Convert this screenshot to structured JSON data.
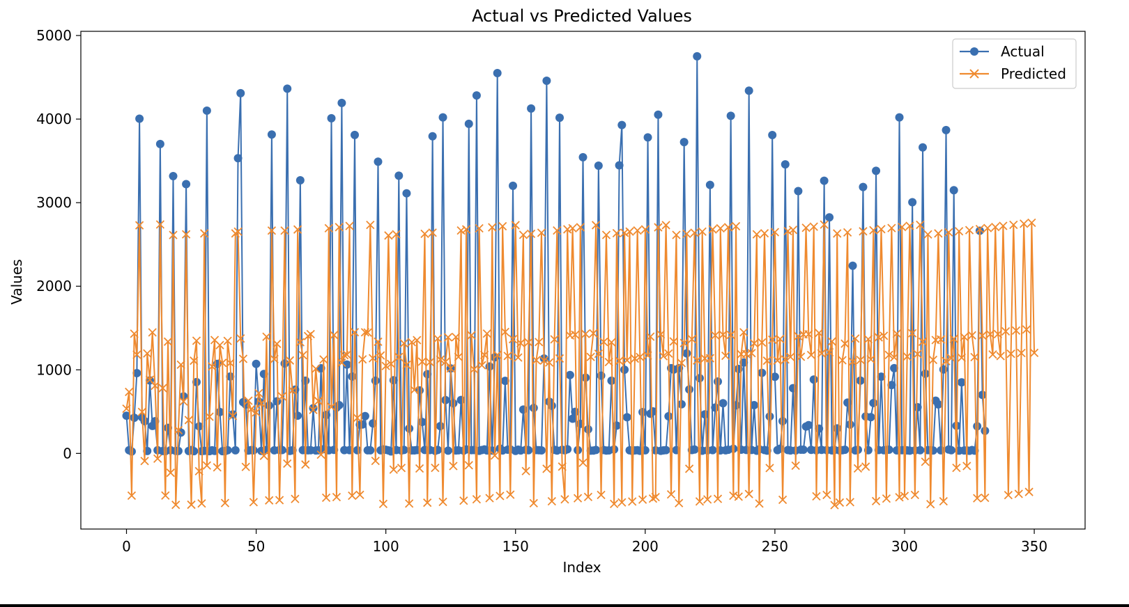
{
  "chart_data": {
    "type": "line",
    "title": "Actual vs Predicted Values",
    "xlabel": "Index",
    "ylabel": "Values",
    "xlim": [
      -17.6,
      369.6
    ],
    "ylim": [
      -905,
      5050
    ],
    "x_ticks": [
      0,
      50,
      100,
      150,
      200,
      250,
      300,
      350
    ],
    "y_ticks": [
      0,
      1000,
      2000,
      3000,
      4000,
      5000
    ],
    "grid": false,
    "legend_position": "top-right",
    "series": [
      {
        "name": "Actual",
        "color": "#3a6fb0",
        "marker": "circle",
        "values": [
          451,
          38,
          23,
          427,
          961,
          4005,
          433,
          386,
          29,
          873,
          329,
          385,
          38,
          3702,
          29,
          27,
          306,
          38,
          3318,
          30,
          29,
          250,
          683,
          3222,
          29,
          40,
          27,
          853,
          324,
          27,
          31,
          4101,
          27,
          37,
          30,
          1071,
          495,
          27,
          27,
          38,
          920,
          467,
          37,
          3532,
          4310,
          613,
          585,
          34,
          39,
          37,
          1071,
          620,
          30,
          950,
          42,
          573,
          3815,
          37,
          623,
          40,
          40,
          1075,
          4364,
          30,
          37,
          763,
          451,
          3268,
          39,
          870,
          37,
          38,
          541,
          35,
          37,
          1019,
          51,
          460,
          37,
          4010,
          42,
          548,
          577,
          4193,
          39,
          1063,
          39,
          920,
          3810,
          38,
          343,
          346,
          446,
          37,
          37,
          359,
          870,
          3490,
          37,
          48,
          43,
          36,
          24,
          875,
          40,
          3323,
          35,
          41,
          3112,
          297,
          36,
          36,
          40,
          753,
          376,
          41,
          948,
          40,
          3794,
          31,
          41,
          327,
          4020,
          638,
          33,
          1017,
          599,
          35,
          37,
          639,
          33,
          48,
          3943,
          39,
          40,
          4283,
          31,
          40,
          48,
          35,
          1040,
          34,
          1150,
          4550,
          58,
          35,
          868,
          44,
          48,
          3202,
          30,
          45,
          35,
          524,
          43,
          38,
          4127,
          544,
          40,
          38,
          36,
          1136,
          4459,
          619,
          570,
          42,
          34,
          4016,
          43,
          37,
          50,
          938,
          415,
          497,
          39,
          354,
          3544,
          907,
          288,
          33,
          34,
          41,
          3443,
          930,
          40,
          34,
          36,
          870,
          48,
          333,
          3447,
          3929,
          1001,
          433,
          37,
          30,
          36,
          38,
          31,
          494,
          37,
          3781,
          474,
          503,
          37,
          4053,
          31,
          36,
          39,
          444,
          1020,
          1003,
          39,
          1020,
          588,
          3725,
          1197,
          765,
          40,
          47,
          4751,
          900,
          32,
          467,
          36,
          3212,
          39,
          548,
          860,
          36,
          600,
          37,
          43,
          4039,
          56,
          575,
          1011,
          44,
          1088,
          41,
          4340,
          41,
          577,
          32,
          49,
          964,
          40,
          33,
          442,
          3809,
          917,
          39,
          56,
          386,
          3458,
          40,
          35,
          781,
          35,
          3139,
          44,
          44,
          321,
          338,
          42,
          884,
          37,
          296,
          42,
          3262,
          39,
          2824,
          36,
          40,
          300,
          35,
          38,
          43,
          608,
          345,
          2245,
          36,
          43,
          871,
          3188,
          442,
          38,
          434,
          603,
          3381,
          40,
          918,
          38,
          40,
          44,
          818,
          1020,
          36,
          4020,
          38,
          41,
          36,
          33,
          3005,
          36,
          552,
          38,
          3661,
          953,
          39,
          37,
          35,
          631,
          587,
          37,
          1004,
          3868,
          47,
          38,
          3149,
          331,
          33,
          850,
          35,
          36,
          31,
          40,
          33,
          325,
          2664,
          700,
          270
        ]
      },
      {
        "name": "Predicted",
        "color": "#ef8a2f",
        "marker": "x",
        "values": [
          535,
          736,
          -505,
          1432,
          1181,
          2729,
          496,
          -91,
          1196,
          881,
          1448,
          810,
          -63,
          2739,
          781,
          -504,
          1337,
          -232,
          2613,
          -616,
          278,
          1062,
          621,
          2621,
          399,
          -614,
          1109,
          1348,
          -213,
          -599,
          2632,
          -145,
          439,
          1040,
          1356,
          -167,
          1296,
          1083,
          -594,
          1346,
          1081,
          448,
          2632,
          2653,
          1375,
          1131,
          -162,
          631,
          527,
          -583,
          491,
          720,
          598,
          -29,
          1396,
          -562,
          2666,
          1128,
          1311,
          -559,
          682,
          2666,
          -122,
          1112,
          752,
          -545,
          2679,
          1330,
          1175,
          -133,
          1404,
          1427,
          520,
          1013,
          627,
          -15,
          1124,
          -530,
          2694,
          556,
          1416,
          -523,
          2707,
          1085,
          1175,
          1181,
          2721,
          -506,
          1450,
          425,
          -496,
          1125,
          1449,
          1446,
          2734,
          1139,
          -90,
          1336,
          1172,
          -604,
          1046,
          2607,
          1071,
          -194,
          2621,
          1153,
          -174,
          1317,
          1060,
          -600,
          1331,
          760,
          1355,
          -180,
          1098,
          2627,
          -590,
          1092,
          2641,
          -173,
          1374,
          1122,
          -580,
          1096,
          1389,
          1017,
          -151,
          1393,
          1154,
          2667,
          -566,
          2680,
          -142,
          1413,
          1006,
          -549,
          2693,
          1054,
          1178,
          1433,
          -535,
          2705,
          -25,
          1179,
          -509,
          2718,
          1453,
          1166,
          -494,
          1367,
          2731,
          1147,
          1320,
          2615,
          -212,
          1329,
          2627,
          -596,
          1116,
          1332,
          2640,
          1111,
          -184,
          1088,
          -573,
          1365,
          2667,
          1136,
          -158,
          -550,
          2681,
          1411,
          2694,
          1420,
          -536,
          2706,
          -112,
          1429,
          -521,
          1154,
          1436,
          2731,
          1192,
          -497,
          1334,
          2614,
          1093,
          1329,
          -604,
          2635,
          1107,
          -586,
          2640,
          1114,
          2654,
          -576,
          1134,
          2667,
          1153,
          -553,
          2680,
          1171,
          1397,
          -541,
          -523,
          2705,
          1425,
          1164,
          2731,
          1195,
          -491,
          1339,
          2614,
          -595,
          1081,
          1321,
          2627,
          -184,
          1367,
          2640,
          1112,
          -575,
          2653,
          1136,
          -551,
          1139,
          2680,
          1412,
          -544,
          2693,
          1421,
          1168,
          2706,
          1418,
          -506,
          2718,
          -518,
          1187,
          1449,
          1189,
          -486,
          1200,
          1317,
          2621,
          -600,
          1327,
          2634,
          1109,
          -175,
          1360,
          2647,
          1111,
          1369,
          -555,
          1124,
          2660,
          1154,
          2674,
          -147,
          1403,
          1156,
          1424,
          2699,
          1426,
          1177,
          2713,
          -514,
          1441,
          1196,
          2738,
          -497,
          1210,
          1339,
          -619,
          2631,
          -588,
          1115,
          1313,
          2644,
          -583,
          1098,
          1374,
          -179,
          1118,
          2657,
          -159,
          1367,
          1125,
          2670,
          -571,
          1389,
          2683,
          1407,
          -541,
          1178,
          2696,
          1149,
          1433,
          -525,
          2709,
          -509,
          1159,
          2722,
          1437,
          -497,
          1189,
          2735,
          1336,
          -100,
          2620,
          -607,
          1119,
          1356,
          2632,
          1363,
          -573,
          1104,
          2645,
          1140,
          1371,
          -173,
          2658,
          1145,
          1394,
          -151,
          2671,
          1412,
          1152,
          -536,
          2684,
          1409,
          -531,
          2696,
          1426,
          1183,
          2709,
          1427,
          1165,
          2722,
          1460,
          -499,
          1192,
          2735,
          1470,
          -484,
          1201,
          2748,
          1482,
          -461,
          2760,
          1203
        ]
      }
    ]
  }
}
